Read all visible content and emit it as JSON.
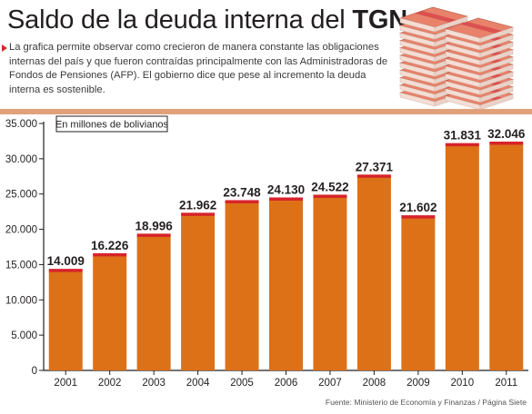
{
  "header": {
    "title_main": "Saldo de la deuda interna del ",
    "title_strong": "TGN",
    "description": "La grafica permite observar como crecieron de manera constante las obligaciones internas del país y que fueron contraídas principalmente con las Administradoras de Fondos de Pensiones (AFP). El gobierno dice que pese al incremento la deuda interna es sostenible."
  },
  "source": "Fuente: Ministerio de Economía y Finanzas / Página Siete",
  "colors": {
    "bar": "#dd7118",
    "bar_cap": "#d7232a",
    "band": "#e0a07a",
    "money": "#e8826a",
    "money_strap": "#d8484b"
  },
  "chart_data": {
    "type": "bar",
    "categories": [
      "2001",
      "2002",
      "2003",
      "2004",
      "2005",
      "2006",
      "2007",
      "2008",
      "2009",
      "2010",
      "2011"
    ],
    "values": [
      14009,
      16226,
      18996,
      21962,
      23748,
      24130,
      24522,
      27371,
      21602,
      31831,
      32046
    ],
    "value_labels": [
      "14.009",
      "16.226",
      "18.996",
      "21.962",
      "23.748",
      "24.130",
      "24.522",
      "27.371",
      "21.602",
      "31.831",
      "32.046"
    ],
    "yticks": [
      0,
      5000,
      10000,
      15000,
      20000,
      25000,
      30000,
      35000
    ],
    "ytick_labels": [
      "0",
      "5.000",
      "10.000",
      "15.000",
      "20.000",
      "25.000",
      "30.000",
      "35.000"
    ],
    "ylim": [
      0,
      35000
    ],
    "unit_label": "En millones de bolivianos",
    "title": "",
    "xlabel": "",
    "ylabel": "",
    "grid": false,
    "legend": "none"
  }
}
